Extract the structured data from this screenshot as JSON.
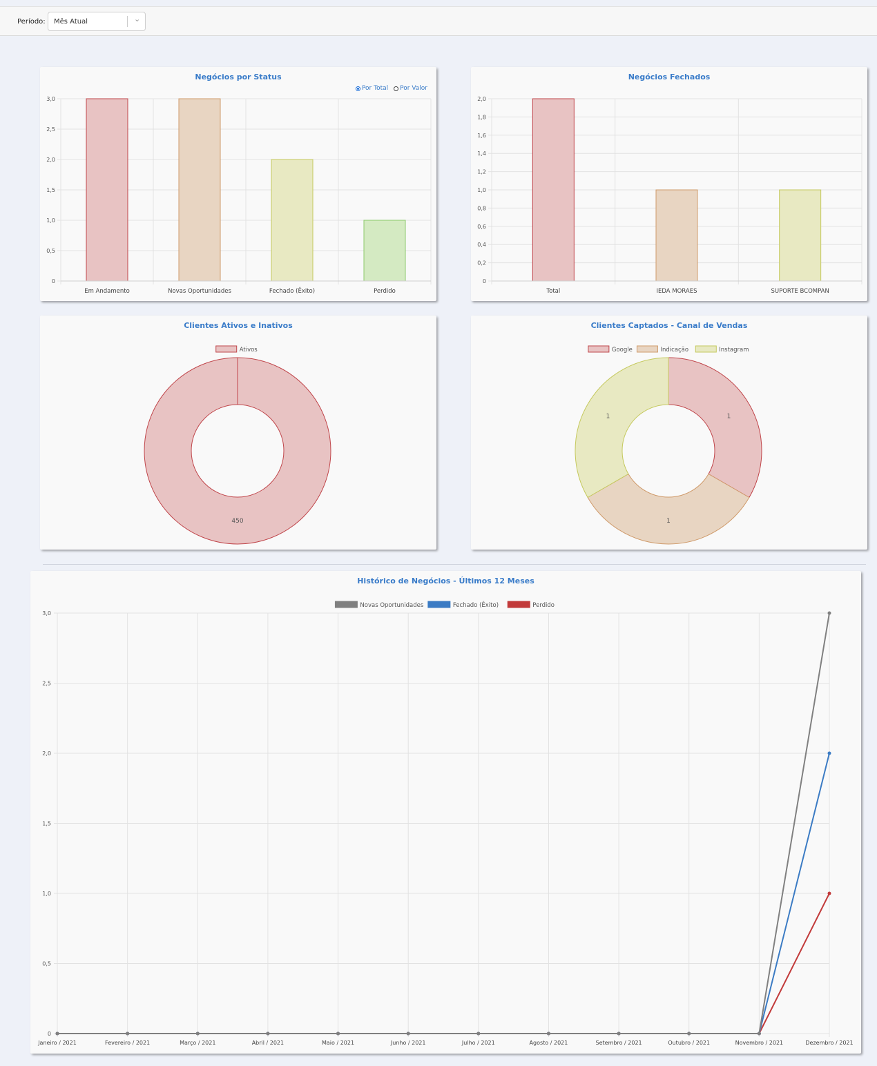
{
  "filter": {
    "label": "Período:",
    "selected": "Mês Atual"
  },
  "status_card": {
    "title": "Negócios por Status",
    "radio_total": "Por Total",
    "radio_valor": "Por Valor"
  },
  "closed_card": {
    "title": "Negócios Fechados"
  },
  "clients_card": {
    "title": "Clientes Ativos e Inativos"
  },
  "channel_card": {
    "title": "Clientes Captados - Canal de Vendas"
  },
  "history_card": {
    "title": "Histórico de Negócios - Últimos 12 Meses"
  },
  "colors": {
    "red_fill": "#e8c3c3",
    "red_stroke": "#c0464b",
    "tan_fill": "#e8d5c2",
    "tan_stroke": "#cf9a6a",
    "yellow_fill": "#e8e9c2",
    "yellow_stroke": "#c5c95e",
    "green_fill": "#d4eac2",
    "green_stroke": "#8cc96a",
    "gray": "#808080",
    "blue": "#3b7bc4",
    "red": "#c23a3a"
  },
  "chart_data": [
    {
      "type": "bar",
      "title": "Negócios por Status",
      "categories": [
        "Em Andamento",
        "Novas Oportunidades",
        "Fechado (Êxito)",
        "Perdido"
      ],
      "values": [
        3,
        3,
        2,
        1
      ],
      "ylim": [
        0,
        3
      ],
      "yticks": [
        "0",
        "0,5",
        "1,0",
        "1,5",
        "2,0",
        "2,5",
        "3,0"
      ],
      "grid": true
    },
    {
      "type": "bar",
      "title": "Negócios Fechados",
      "categories": [
        "Total",
        "IEDA MORAES",
        "SUPORTE BCOMPAN"
      ],
      "values": [
        2,
        1,
        1
      ],
      "ylim": [
        0,
        2
      ],
      "yticks": [
        "0",
        "0,2",
        "0,4",
        "0,6",
        "0,8",
        "1,0",
        "1,2",
        "1,4",
        "1,6",
        "1,8",
        "2,0"
      ],
      "grid": true
    },
    {
      "type": "pie",
      "title": "Clientes Ativos e Inativos",
      "labels": [
        "Ativos"
      ],
      "values": [
        450
      ],
      "legend": "top"
    },
    {
      "type": "pie",
      "title": "Clientes Captados - Canal de Vendas",
      "labels": [
        "Google",
        "Indicação",
        "Instagram"
      ],
      "values": [
        1,
        1,
        1
      ],
      "legend": "top"
    },
    {
      "type": "line",
      "title": "Histórico de Negócios - Últimos 12 Meses",
      "x": [
        "Janeiro / 2021",
        "Fevereiro / 2021",
        "Março / 2021",
        "Abril / 2021",
        "Maio / 2021",
        "Junho / 2021",
        "Julho / 2021",
        "Agosto / 2021",
        "Setembro / 2021",
        "Outubro / 2021",
        "Novembro / 2021",
        "Dezembro / 2021"
      ],
      "series": [
        {
          "name": "Novas Oportunidades",
          "values": [
            0,
            0,
            0,
            0,
            0,
            0,
            0,
            0,
            0,
            0,
            0,
            3
          ]
        },
        {
          "name": "Fechado (Êxito)",
          "values": [
            0,
            0,
            0,
            0,
            0,
            0,
            0,
            0,
            0,
            0,
            0,
            2
          ]
        },
        {
          "name": "Perdido",
          "values": [
            0,
            0,
            0,
            0,
            0,
            0,
            0,
            0,
            0,
            0,
            0,
            1
          ]
        }
      ],
      "ylim": [
        0,
        3
      ],
      "yticks": [
        "0",
        "0,5",
        "1,0",
        "1,5",
        "2,0",
        "2,5",
        "3,0"
      ],
      "legend": "top",
      "grid": true
    }
  ]
}
